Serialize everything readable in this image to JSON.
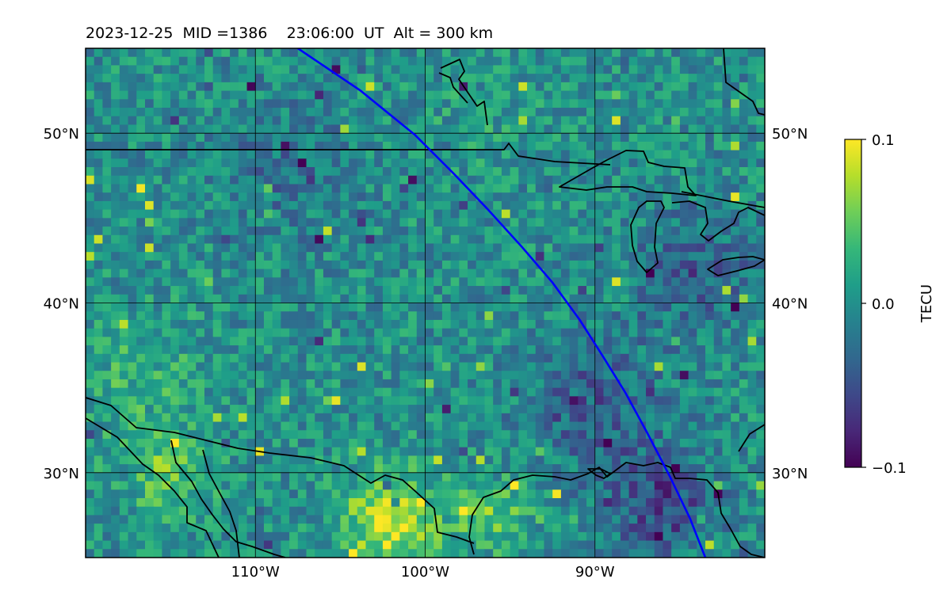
{
  "title": "2023-12-25  MID =1386    23:06:00  UT  Alt = 300 km",
  "map": {
    "lon_range": [
      -120,
      -80
    ],
    "lat_range": [
      25,
      55
    ],
    "grid": true,
    "lon_ticks": [
      {
        "value": -110,
        "label": "110°W"
      },
      {
        "value": -100,
        "label": "100°W"
      },
      {
        "value": -90,
        "label": "90°W"
      }
    ],
    "lat_ticks": [
      {
        "value": 50,
        "label": "50°N"
      },
      {
        "value": 40,
        "label": "40°N"
      },
      {
        "value": 30,
        "label": "30°N"
      }
    ],
    "track_color": "#0000ff",
    "track": [
      [
        -107.5,
        55
      ],
      [
        -103.8,
        52.5
      ],
      [
        -100.6,
        49.9
      ],
      [
        -98.3,
        47.6
      ],
      [
        -96.3,
        45.5
      ],
      [
        -94.3,
        43.3
      ],
      [
        -92.5,
        41.2
      ],
      [
        -90.9,
        39.0
      ],
      [
        -89.5,
        36.8
      ],
      [
        -88.2,
        34.7
      ],
      [
        -86.9,
        32.3
      ],
      [
        -85.6,
        29.8
      ],
      [
        -84.4,
        27.3
      ],
      [
        -83.5,
        25.0
      ]
    ]
  },
  "colorbar": {
    "label": "TECU",
    "min": -0.1,
    "max": 0.1,
    "ticks": [
      {
        "value": 0.1,
        "label": "0.1"
      },
      {
        "value": 0.0,
        "label": "0.0"
      },
      {
        "value": -0.1,
        "label": "−0.1"
      }
    ],
    "colormap": "viridis",
    "stops": [
      "#440154",
      "#482878",
      "#3e4989",
      "#31688e",
      "#26828e",
      "#1f9e89",
      "#35b779",
      "#6ece58",
      "#b5de2b",
      "#fde725"
    ]
  },
  "tec_field": {
    "cell_deg": [
      0.5,
      0.5
    ],
    "features": [
      {
        "lon": -115.0,
        "lat": 30.0,
        "v": 0.05,
        "r": 2.5
      },
      {
        "lon": -102.0,
        "lat": 27.0,
        "v": 0.08,
        "r": 3.0
      },
      {
        "lon": -96.0,
        "lat": 27.5,
        "v": 0.05,
        "r": 2.0
      },
      {
        "lon": -86.0,
        "lat": 28.0,
        "v": -0.06,
        "r": 3.0
      },
      {
        "lon": -90.0,
        "lat": 34.0,
        "v": -0.04,
        "r": 4.0
      },
      {
        "lon": -84.0,
        "lat": 42.0,
        "v": -0.04,
        "r": 3.5
      },
      {
        "lon": -108.0,
        "lat": 48.0,
        "v": -0.025,
        "r": 4.0
      },
      {
        "lon": -97.0,
        "lat": 51.0,
        "v": 0.01,
        "r": 3.0
      },
      {
        "lon": -117.0,
        "lat": 36.0,
        "v": 0.025,
        "r": 4.0
      }
    ]
  }
}
